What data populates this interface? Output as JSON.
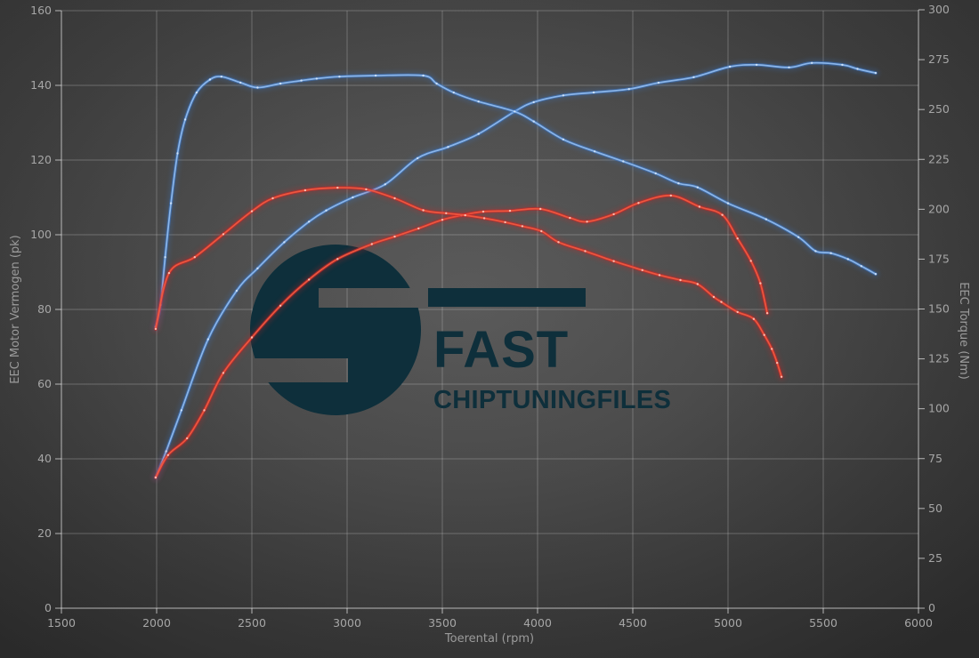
{
  "watermark": {
    "fast_label": "FAST",
    "files_label": "CHIPTUNINGFILES",
    "logo_color": "#0e2f3b"
  },
  "colors": {
    "blue": "#3a79cc",
    "blue_core": "#8fbbee",
    "blue_dot": "#d6e7fb",
    "red": "#d92222",
    "red_core": "#f1583f",
    "red_dot": "#ffccbf",
    "grid": "rgba(205,205,205,0.32)",
    "axis": "rgba(225,225,225,0.75)",
    "tick_text": "#a6a6a6",
    "title_text": "#9b9b9b"
  },
  "chart_data": {
    "type": "line",
    "title": "",
    "xlabel": "Toerental (rpm)",
    "ylabel_left": "EEC Motor Vermogen (pk)",
    "ylabel_right": "EEC Torque (Nm)",
    "x_range": [
      1500,
      6000
    ],
    "y_left_range": [
      0,
      160
    ],
    "y_right_range": [
      0,
      300
    ],
    "x_ticks": [
      1500,
      2000,
      2500,
      3000,
      3500,
      4000,
      4500,
      5000,
      5500,
      6000
    ],
    "y_left_ticks": [
      0,
      20,
      40,
      60,
      80,
      100,
      120,
      140,
      160
    ],
    "y_right_ticks": [
      0,
      25,
      50,
      75,
      100,
      125,
      150,
      175,
      200,
      225,
      250,
      275,
      300
    ],
    "grid": true,
    "legend": false,
    "series": [
      {
        "id": "power-blue",
        "axis": "left",
        "unit": "pk",
        "color_key": "blue",
        "points": [
          [
            1995,
            35
          ],
          [
            2050,
            42
          ],
          [
            2130,
            53
          ],
          [
            2270,
            72
          ],
          [
            2420,
            85
          ],
          [
            2530,
            91
          ],
          [
            2670,
            98
          ],
          [
            2800,
            103.5
          ],
          [
            2890,
            106.5
          ],
          [
            3030,
            110
          ],
          [
            3200,
            113.5
          ],
          [
            3370,
            120.5
          ],
          [
            3530,
            123.5
          ],
          [
            3690,
            127
          ],
          [
            3880,
            133
          ],
          [
            3980,
            135.5
          ],
          [
            4135,
            137.3
          ],
          [
            4295,
            138.1
          ],
          [
            4480,
            139
          ],
          [
            4635,
            140.7
          ],
          [
            4820,
            142.2
          ],
          [
            5010,
            145
          ],
          [
            5150,
            145.5
          ],
          [
            5320,
            144.8
          ],
          [
            5440,
            146
          ],
          [
            5600,
            145.5
          ],
          [
            5680,
            144.4
          ],
          [
            5775,
            143.3
          ]
        ]
      },
      {
        "id": "torque-blue",
        "axis": "right",
        "unit": "Nm",
        "color_key": "blue",
        "points": [
          [
            1995,
            141
          ],
          [
            2020,
            152
          ],
          [
            2045,
            176
          ],
          [
            2075,
            203
          ],
          [
            2110,
            228
          ],
          [
            2150,
            245
          ],
          [
            2210,
            258.5
          ],
          [
            2280,
            265
          ],
          [
            2340,
            266.5
          ],
          [
            2440,
            263.5
          ],
          [
            2530,
            261
          ],
          [
            2650,
            263
          ],
          [
            2760,
            264.5
          ],
          [
            2840,
            265.5
          ],
          [
            2960,
            266.5
          ],
          [
            3150,
            267
          ],
          [
            3400,
            267
          ],
          [
            3470,
            263
          ],
          [
            3560,
            258.5
          ],
          [
            3690,
            254
          ],
          [
            3880,
            249
          ],
          [
            3980,
            244
          ],
          [
            4135,
            235
          ],
          [
            4300,
            229
          ],
          [
            4450,
            224
          ],
          [
            4620,
            218
          ],
          [
            4740,
            213
          ],
          [
            4840,
            211
          ],
          [
            5000,
            203
          ],
          [
            5200,
            195
          ],
          [
            5370,
            186
          ],
          [
            5460,
            179
          ],
          [
            5540,
            178
          ],
          [
            5630,
            175
          ],
          [
            5700,
            171.5
          ],
          [
            5775,
            167.5
          ]
        ]
      },
      {
        "id": "power-red",
        "axis": "left",
        "unit": "pk",
        "color_key": "red",
        "points": [
          [
            1995,
            35
          ],
          [
            2060,
            41
          ],
          [
            2160,
            45.5
          ],
          [
            2250,
            53
          ],
          [
            2350,
            63
          ],
          [
            2500,
            72.5
          ],
          [
            2650,
            81
          ],
          [
            2800,
            88
          ],
          [
            2950,
            93.5
          ],
          [
            3130,
            97.5
          ],
          [
            3250,
            99.5
          ],
          [
            3375,
            101.7
          ],
          [
            3500,
            104
          ],
          [
            3600,
            105.2
          ],
          [
            3715,
            106.2
          ],
          [
            3855,
            106.4
          ],
          [
            4015,
            106.9
          ],
          [
            4170,
            104.5
          ],
          [
            4260,
            103.5
          ],
          [
            4400,
            105.5
          ],
          [
            4530,
            108.5
          ],
          [
            4700,
            110.5
          ],
          [
            4850,
            107.5
          ],
          [
            4970,
            105.3
          ],
          [
            5050,
            99
          ],
          [
            5120,
            93
          ],
          [
            5170,
            87
          ],
          [
            5206,
            79
          ]
        ]
      },
      {
        "id": "torque-red",
        "axis": "right",
        "unit": "Nm",
        "color_key": "red",
        "points": [
          [
            1995,
            140
          ],
          [
            2065,
            168
          ],
          [
            2200,
            176
          ],
          [
            2350,
            187.5
          ],
          [
            2500,
            199
          ],
          [
            2610,
            205.5
          ],
          [
            2780,
            209.5
          ],
          [
            2950,
            210.8
          ],
          [
            3100,
            210
          ],
          [
            3250,
            205.5
          ],
          [
            3400,
            199.5
          ],
          [
            3520,
            198
          ],
          [
            3620,
            197
          ],
          [
            3720,
            195.5
          ],
          [
            3830,
            193.5
          ],
          [
            3920,
            191.5
          ],
          [
            4020,
            189
          ],
          [
            4110,
            183.5
          ],
          [
            4250,
            179
          ],
          [
            4400,
            174
          ],
          [
            4550,
            169.5
          ],
          [
            4640,
            167
          ],
          [
            4750,
            164.5
          ],
          [
            4840,
            162.5
          ],
          [
            4925,
            156
          ],
          [
            4965,
            153.5
          ],
          [
            5050,
            148.5
          ],
          [
            5135,
            145
          ],
          [
            5190,
            137
          ],
          [
            5230,
            130
          ],
          [
            5258,
            123
          ],
          [
            5281,
            116
          ]
        ]
      }
    ]
  }
}
